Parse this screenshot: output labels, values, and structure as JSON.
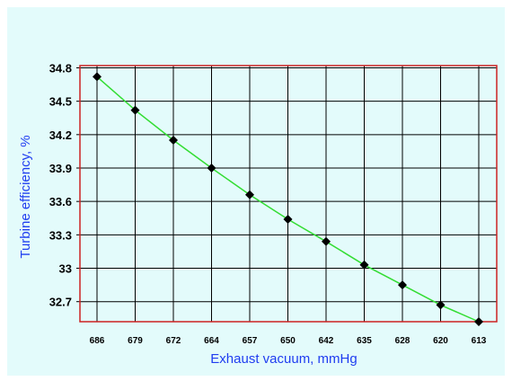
{
  "chart_data": {
    "type": "line",
    "xlabel": "Exhaust vacuum, mmHg",
    "ylabel": "Turbine efficiency, %",
    "categories": [
      "686",
      "679",
      "672",
      "664",
      "657",
      "650",
      "642",
      "635",
      "628",
      "620",
      "613"
    ],
    "series": [
      {
        "values": [
          34.72,
          34.42,
          34.15,
          33.9,
          33.66,
          33.44,
          33.24,
          33.03,
          32.85,
          32.67,
          32.52
        ]
      }
    ],
    "yticks": [
      "34.8",
      "34.5",
      "34.2",
      "33.9",
      "33.6",
      "33.3",
      "33",
      "32.7"
    ],
    "ylim": [
      32.52,
      34.82
    ],
    "grid": true,
    "colors": {
      "background": "#e3fbfb",
      "plot_area": "#e3fbfb",
      "frame": "#cc2222",
      "grid": "#000000",
      "line": "#33dd33",
      "marker": "#000000",
      "axis_title": "#1f3df0"
    }
  }
}
